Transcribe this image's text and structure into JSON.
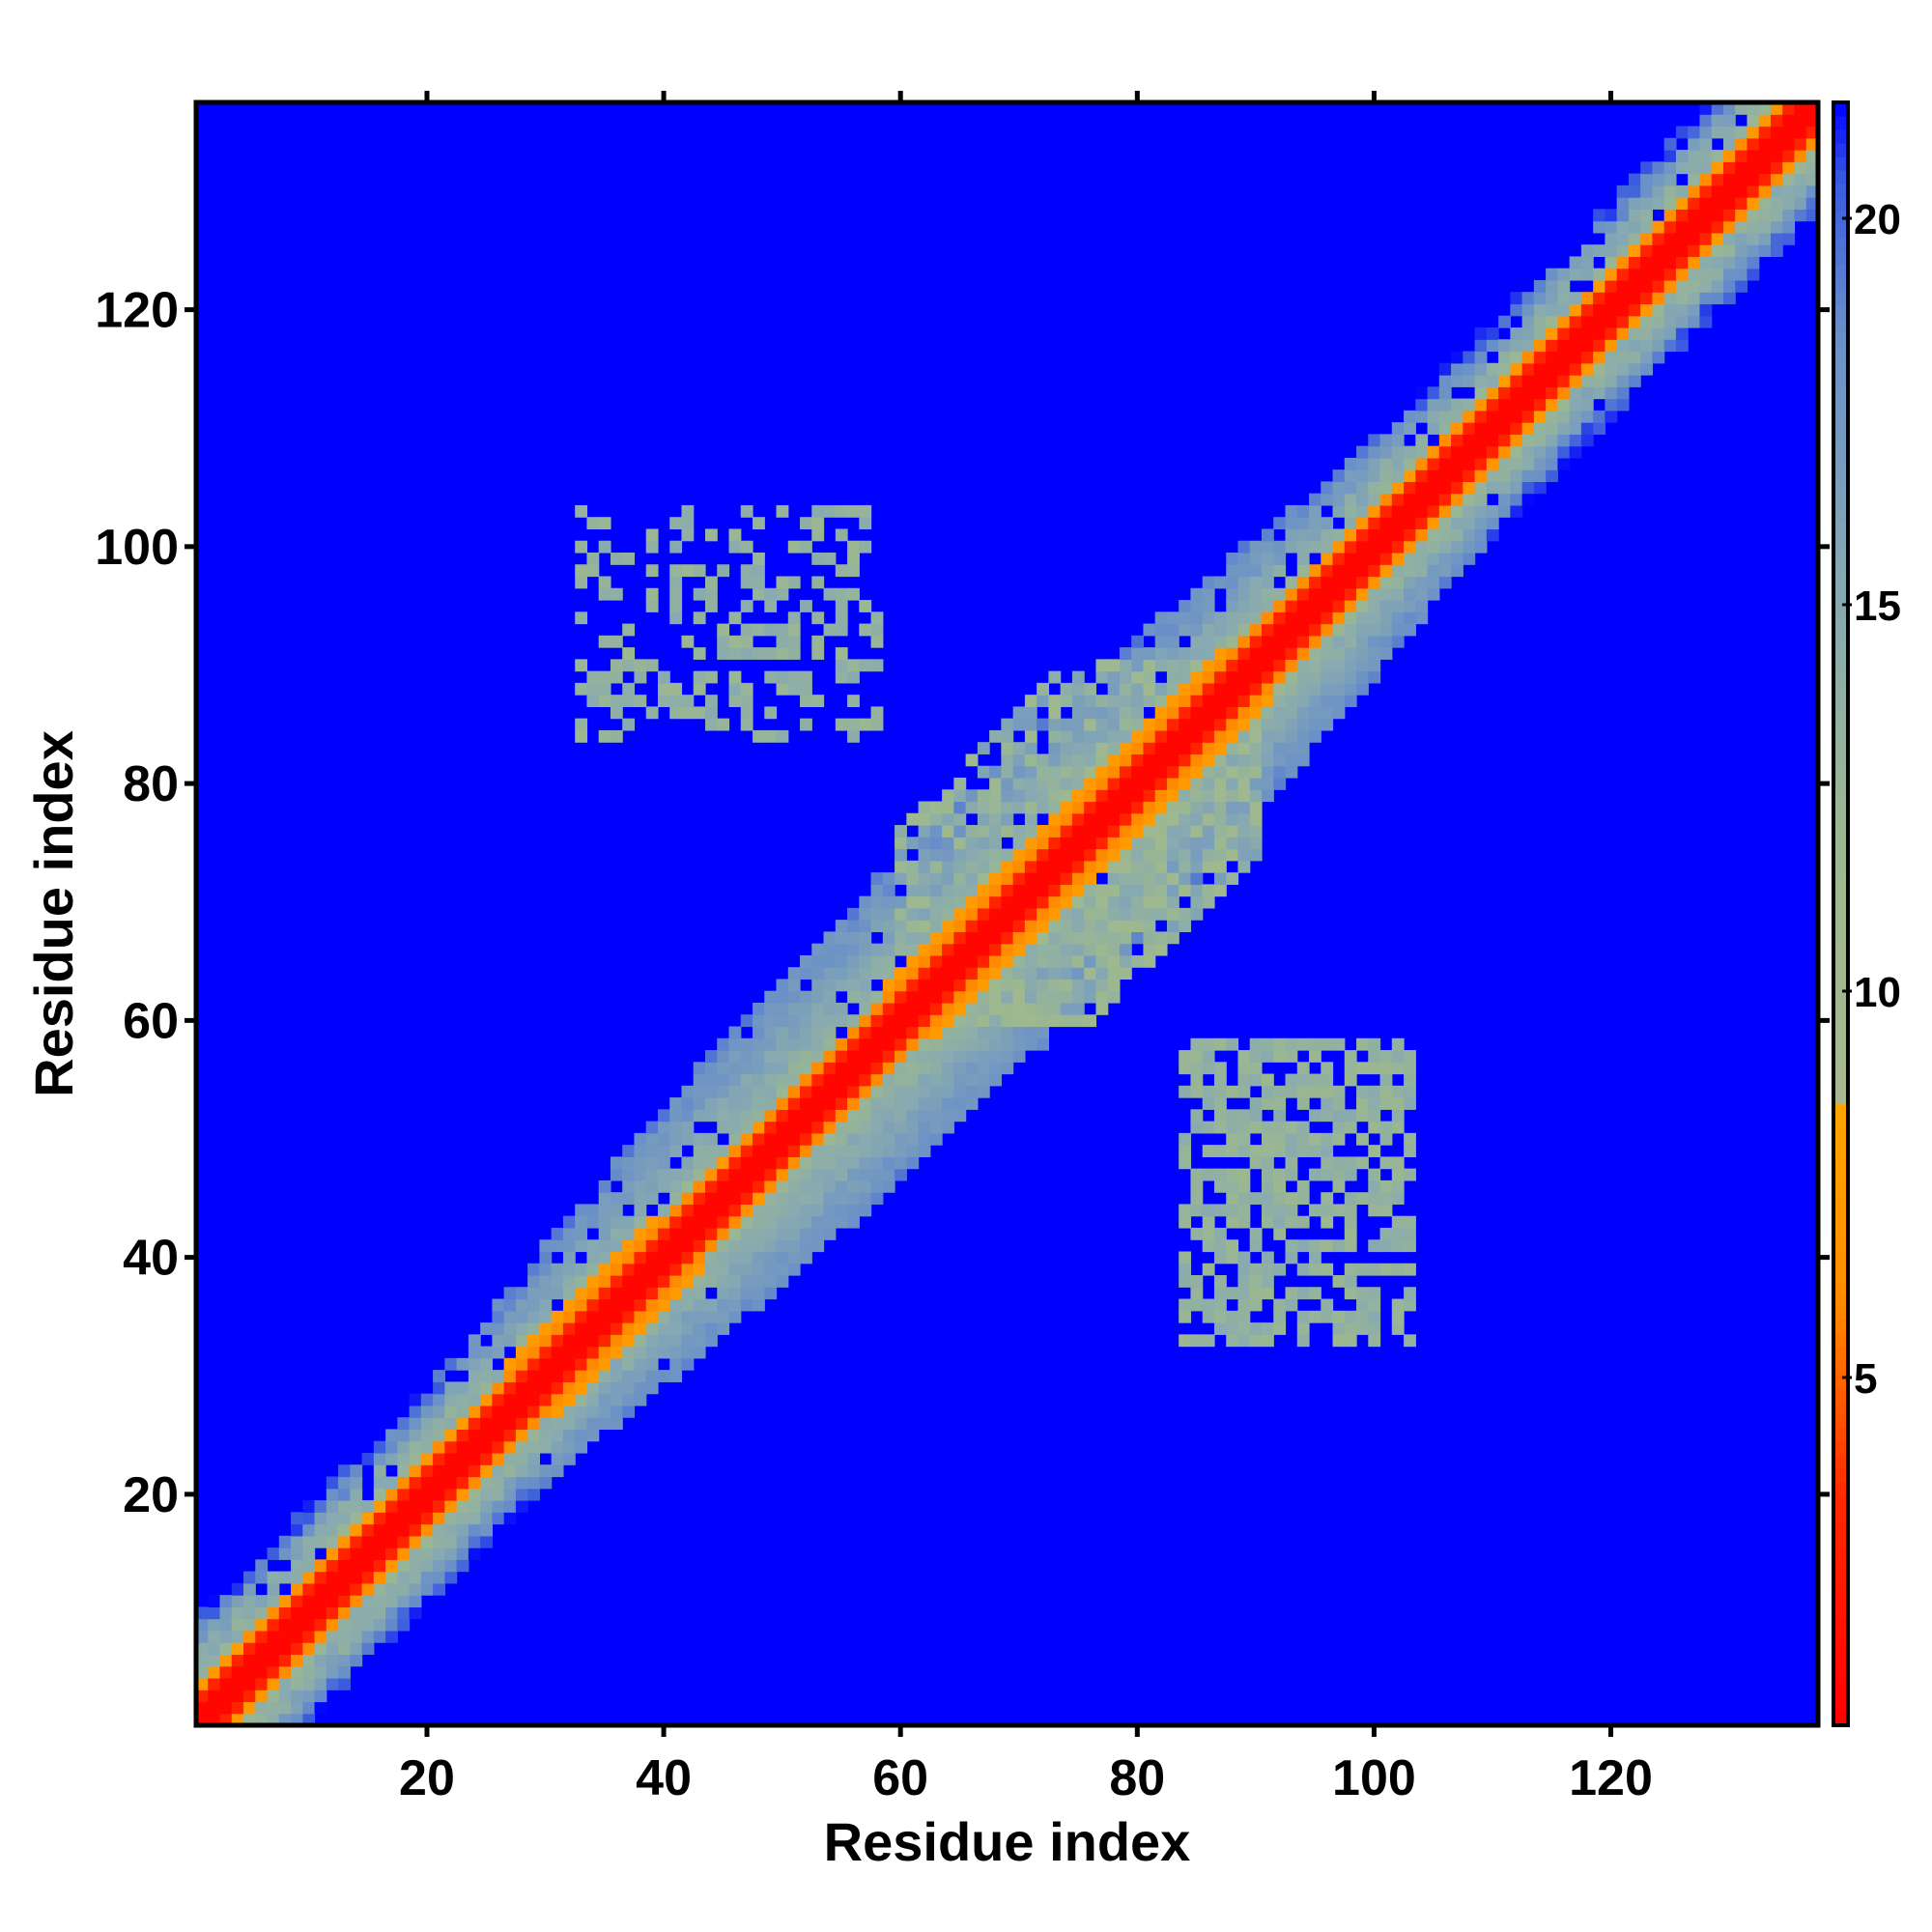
{
  "chart_data": {
    "type": "heatmap",
    "title": "",
    "xlabel": "Residue index",
    "ylabel": "Residue index",
    "n_residues": 137,
    "xlim": [
      0.5,
      137.5
    ],
    "ylim": [
      0.5,
      137.5
    ],
    "x_ticks": [
      20,
      40,
      60,
      80,
      100,
      120
    ],
    "y_ticks": [
      20,
      40,
      60,
      80,
      100,
      120
    ],
    "colorbar": {
      "ticks": [
        5,
        10,
        15,
        20
      ],
      "range": [
        0.5,
        21.5
      ],
      "colors": [
        {
          "value": 0.5,
          "color": "#ff0000"
        },
        {
          "value": 3.5,
          "color": "#ff2a00"
        },
        {
          "value": 6.0,
          "color": "#ff8c00"
        },
        {
          "value": 8.5,
          "color": "#ffa500"
        },
        {
          "value": 8.6,
          "color": "#a8b890"
        },
        {
          "value": 12.0,
          "color": "#9cb890"
        },
        {
          "value": 15.0,
          "color": "#88aab0"
        },
        {
          "value": 18.5,
          "color": "#6a90c8"
        },
        {
          "value": 20.5,
          "color": "#3a5ae0"
        },
        {
          "value": 21.5,
          "color": "#0000ff"
        }
      ]
    },
    "background_color": "#0000ff",
    "features": [
      {
        "type": "diagonal_band",
        "from": 1,
        "to": 137,
        "center_value": 1,
        "half_width_residues": 8
      },
      {
        "type": "cross_contact",
        "x_range": [
          33,
          58
        ],
        "y_range": [
          84,
          103
        ],
        "value": 12
      },
      {
        "type": "cross_contact",
        "x_range": [
          84,
          103
        ],
        "y_range": [
          33,
          58
        ],
        "value": 12
      },
      {
        "type": "dense_block",
        "x_range": [
          60,
          90
        ],
        "y_range": [
          60,
          90
        ],
        "value": 11
      }
    ],
    "grid": false,
    "legend": "colorbar-right"
  }
}
